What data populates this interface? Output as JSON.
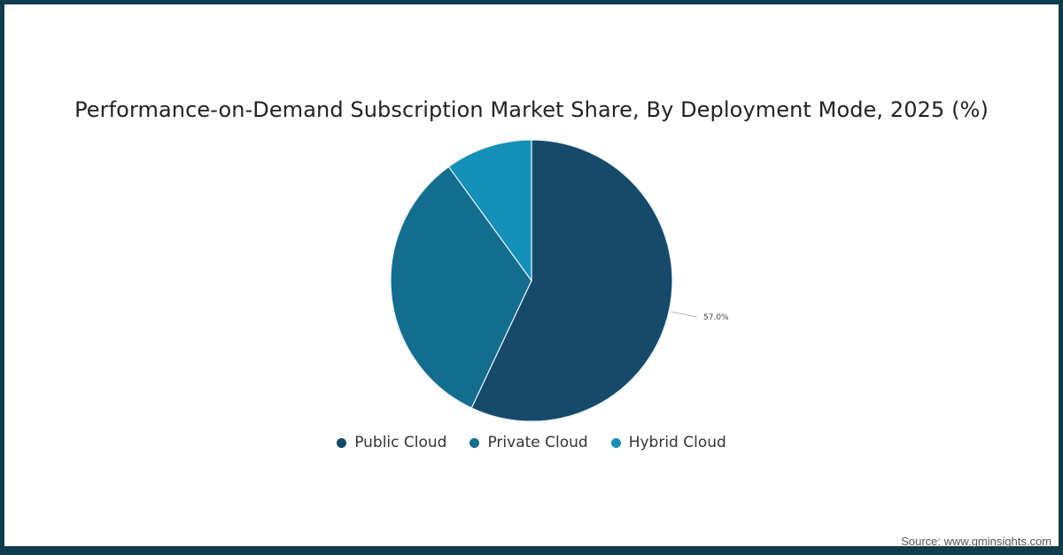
{
  "title": "Performance-on-Demand Subscription Market Share, By Deployment Mode, 2025 (%)",
  "source": "Source: www.gminsights.com",
  "colors": {
    "frame": "#0f3d4e",
    "public": "#154a6a",
    "private": "#136d8e",
    "hybrid": "#1590b8"
  },
  "legend": [
    {
      "label": "Public Cloud",
      "color": "#154a6a"
    },
    {
      "label": "Private Cloud",
      "color": "#136d8e"
    },
    {
      "label": "Hybrid Cloud",
      "color": "#1590b8"
    }
  ],
  "data_label": "57.0%",
  "chart_data": {
    "type": "pie",
    "title": "Performance-on-Demand Subscription Market Share, By Deployment Mode, 2025 (%)",
    "categories": [
      "Public Cloud",
      "Private Cloud",
      "Hybrid Cloud"
    ],
    "values": [
      57.0,
      33.0,
      10.0
    ],
    "labels_shown": {
      "Public Cloud": "57.0%"
    },
    "legend_position": "bottom",
    "start_angle": "12 o'clock, clockwise"
  }
}
